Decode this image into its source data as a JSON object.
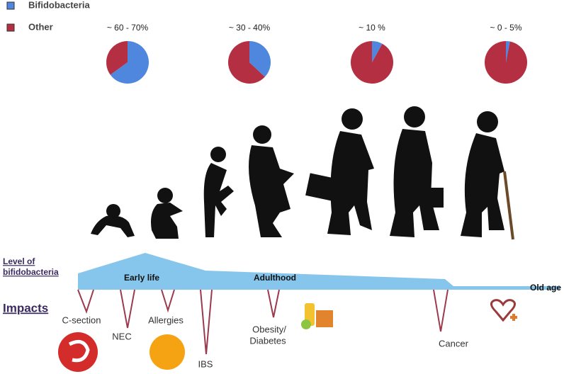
{
  "legend": [
    {
      "label": "Bifidobacteria",
      "color": "#4f86de"
    },
    {
      "label": "Other",
      "color": "#b52f42"
    }
  ],
  "pies": [
    {
      "label": "~ 60 - 70%",
      "bifidobacteria": 65
    },
    {
      "label": "~ 30 - 40%",
      "bifidobacteria": 37
    },
    {
      "label": "~ 10 %",
      "bifidobacteria": 8
    },
    {
      "label": "~ 0 - 5%",
      "bifidobacteria": 3
    }
  ],
  "level_label": [
    "Level of",
    "bifidobacteria"
  ],
  "impacts_title": "Impacts",
  "stages": [
    "Early life",
    "Adulthood",
    "Old age"
  ],
  "impacts": [
    "C-section",
    "NEC",
    "Allergies",
    "IBS",
    "Obesity/",
    "Diabetes",
    "Cancer"
  ]
}
